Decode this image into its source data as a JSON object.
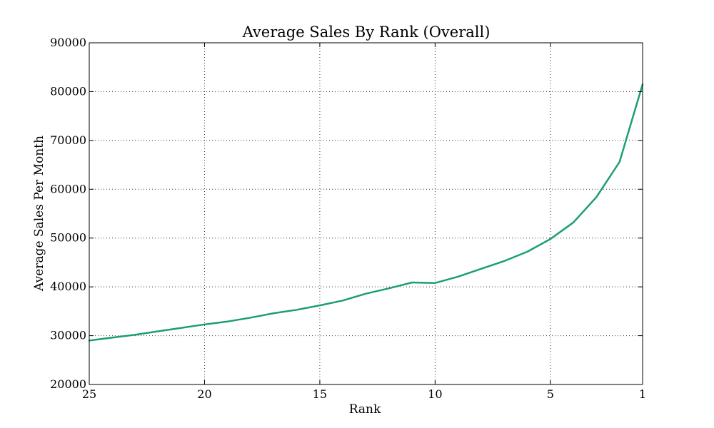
{
  "chart_data": {
    "type": "line",
    "title": "Average Sales By Rank (Overall)",
    "xlabel": "Rank",
    "ylabel": "Average Sales Per Month",
    "xlim": [
      25,
      1
    ],
    "ylim": [
      20000,
      90000
    ],
    "x_reversed": true,
    "grid": true,
    "x_ticks": [
      25,
      20,
      15,
      10,
      5,
      1
    ],
    "y_ticks": [
      20000,
      30000,
      40000,
      50000,
      60000,
      70000,
      80000,
      90000
    ],
    "series": [
      {
        "color": "#1b9e77",
        "x": [
          25,
          24,
          23,
          22,
          21,
          20,
          19,
          18,
          17,
          16,
          15,
          14,
          13,
          12,
          11,
          10,
          9,
          8,
          7,
          6,
          5,
          4,
          3,
          2,
          1
        ],
        "y": [
          29000,
          29600,
          30200,
          30900,
          31600,
          32300,
          32900,
          33700,
          34600,
          35300,
          36200,
          37200,
          38600,
          39700,
          40900,
          40800,
          42100,
          43700,
          45300,
          47200,
          49800,
          53200,
          58400,
          65600,
          81500
        ]
      }
    ]
  }
}
